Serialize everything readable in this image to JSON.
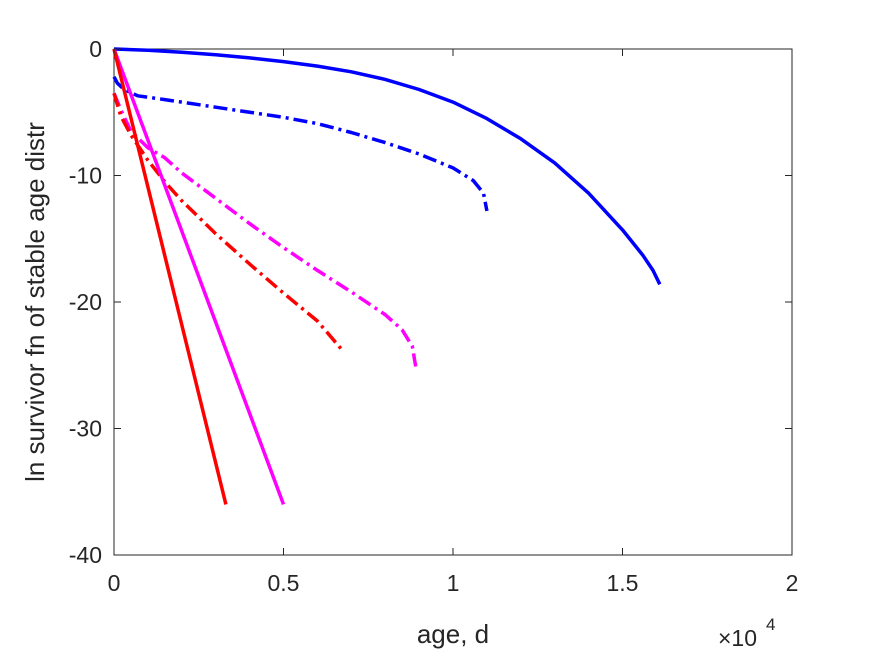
{
  "chart_data": {
    "type": "line",
    "title": "",
    "xlabel": "age, d",
    "ylabel": "ln survivor fn of stable age distr",
    "x_exponent_label": "×10",
    "x_exponent_power": "4",
    "xlim": [
      0,
      20000
    ],
    "ylim": [
      -40,
      0
    ],
    "x_ticks": [
      {
        "value": 0,
        "label": "0"
      },
      {
        "value": 5000,
        "label": "0.5"
      },
      {
        "value": 10000,
        "label": "1"
      },
      {
        "value": 15000,
        "label": "1.5"
      },
      {
        "value": 20000,
        "label": "2"
      }
    ],
    "y_ticks": [
      {
        "value": 0,
        "label": "0"
      },
      {
        "value": -10,
        "label": "-10"
      },
      {
        "value": -20,
        "label": "-20"
      },
      {
        "value": -30,
        "label": "-30"
      },
      {
        "value": -40,
        "label": "-40"
      }
    ],
    "grid": false,
    "series": [
      {
        "color": "#0000ff",
        "style": "solid",
        "points": [
          [
            0,
            0
          ],
          [
            1000,
            -0.1
          ],
          [
            2000,
            -0.25
          ],
          [
            3000,
            -0.45
          ],
          [
            4000,
            -0.7
          ],
          [
            5000,
            -1.0
          ],
          [
            6000,
            -1.35
          ],
          [
            7000,
            -1.8
          ],
          [
            8000,
            -2.4
          ],
          [
            9000,
            -3.2
          ],
          [
            10000,
            -4.2
          ],
          [
            11000,
            -5.5
          ],
          [
            12000,
            -7.1
          ],
          [
            13000,
            -9.0
          ],
          [
            14000,
            -11.4
          ],
          [
            15000,
            -14.3
          ],
          [
            15600,
            -16.3
          ],
          [
            15900,
            -17.5
          ],
          [
            16100,
            -18.6
          ]
        ]
      },
      {
        "color": "#0000ff",
        "style": "dashdot",
        "points": [
          [
            0,
            -2.2
          ],
          [
            100,
            -2.7
          ],
          [
            300,
            -3.2
          ],
          [
            700,
            -3.7
          ],
          [
            1500,
            -4.0
          ],
          [
            3000,
            -4.6
          ],
          [
            5000,
            -5.4
          ],
          [
            6000,
            -5.9
          ],
          [
            7000,
            -6.6
          ],
          [
            8000,
            -7.4
          ],
          [
            9000,
            -8.3
          ],
          [
            10000,
            -9.4
          ],
          [
            10600,
            -10.4
          ],
          [
            10900,
            -11.4
          ],
          [
            11000,
            -12.8
          ]
        ]
      },
      {
        "color": "#ff00ff",
        "style": "dashdot",
        "points": [
          [
            0,
            -3.5
          ],
          [
            200,
            -4.8
          ],
          [
            500,
            -6.5
          ],
          [
            1000,
            -7.8
          ],
          [
            1500,
            -8.6
          ],
          [
            2000,
            -9.8
          ],
          [
            3000,
            -11.8
          ],
          [
            4000,
            -13.8
          ],
          [
            5000,
            -15.7
          ],
          [
            6000,
            -17.5
          ],
          [
            7000,
            -19.2
          ],
          [
            8000,
            -21.0
          ],
          [
            8500,
            -22.2
          ],
          [
            8800,
            -23.5
          ],
          [
            8900,
            -25.1
          ]
        ]
      },
      {
        "color": "#ff0000",
        "style": "dashdot",
        "points": [
          [
            0,
            -3.5
          ],
          [
            200,
            -5.3
          ],
          [
            500,
            -6.8
          ],
          [
            1000,
            -8.8
          ],
          [
            1500,
            -10.5
          ],
          [
            2000,
            -12.0
          ],
          [
            3000,
            -14.6
          ],
          [
            4000,
            -17.0
          ],
          [
            5000,
            -19.3
          ],
          [
            6000,
            -21.5
          ],
          [
            6700,
            -23.7
          ]
        ]
      },
      {
        "color": "#ff00ff",
        "style": "solid",
        "points": [
          [
            0,
            0
          ],
          [
            5000,
            -36.0
          ]
        ]
      },
      {
        "color": "#ff0000",
        "style": "solid",
        "points": [
          [
            0,
            0
          ],
          [
            3300,
            -36.0
          ]
        ]
      }
    ]
  }
}
